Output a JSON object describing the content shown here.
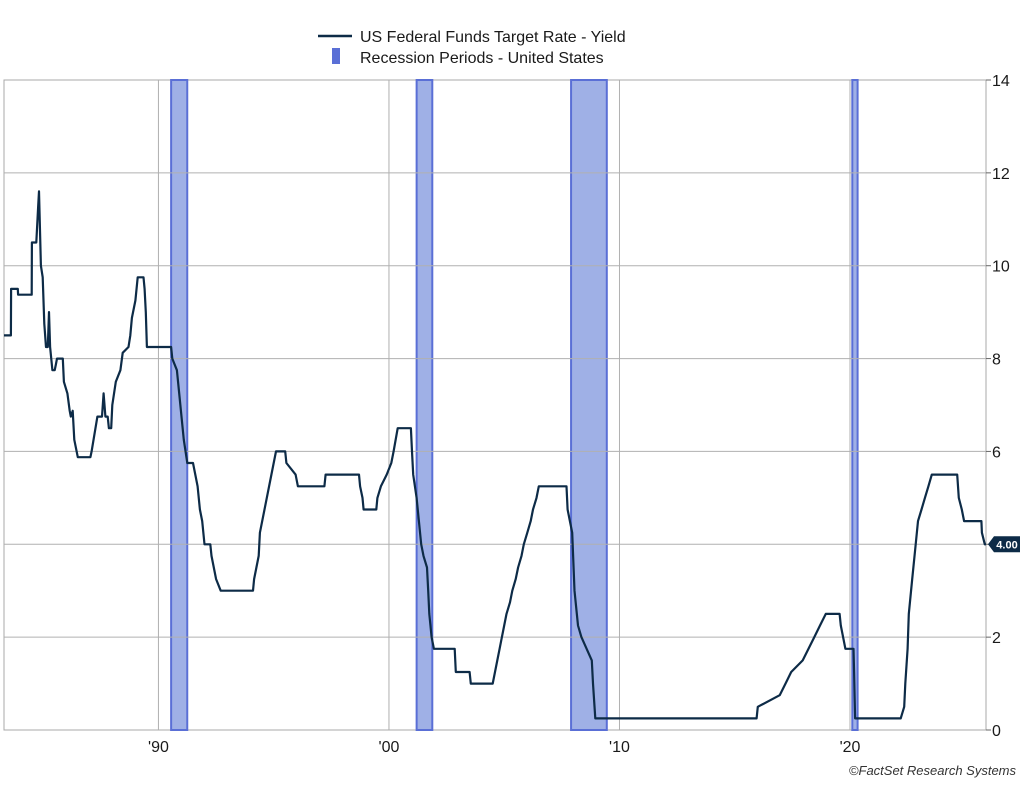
{
  "chart_data": {
    "type": "line",
    "title": "",
    "xlabel": "",
    "ylabel": "",
    "legend_placement": "top-center",
    "grid": true,
    "ylim": [
      0,
      14
    ],
    "xlim": [
      1983.3,
      2025.9
    ],
    "y_ticks": [
      "0",
      "2",
      "4",
      "6",
      "8",
      "10",
      "12",
      "14"
    ],
    "y_tick_values": [
      0,
      2,
      4,
      6,
      8,
      10,
      12,
      14
    ],
    "x_ticks": [
      "'90",
      "'00",
      "'10",
      "'20"
    ],
    "x_tick_values": [
      1990,
      2000,
      2010,
      2020
    ],
    "series": [
      {
        "name": "US Federal Funds Target Rate - Yield",
        "color": "#0d2b47",
        "points": [
          [
            1983.3,
            8.5
          ],
          [
            1983.6,
            8.5
          ],
          [
            1983.61,
            9.5
          ],
          [
            1983.9,
            9.5
          ],
          [
            1983.91,
            9.375
          ],
          [
            1984.5,
            9.375
          ],
          [
            1984.51,
            10.5
          ],
          [
            1984.7,
            10.5
          ],
          [
            1984.78,
            11.25
          ],
          [
            1984.82,
            11.6
          ],
          [
            1984.9,
            10.0
          ],
          [
            1984.98,
            9.75
          ],
          [
            1985.05,
            8.75
          ],
          [
            1985.12,
            8.25
          ],
          [
            1985.2,
            8.25
          ],
          [
            1985.25,
            9.0
          ],
          [
            1985.3,
            8.25
          ],
          [
            1985.4,
            7.75
          ],
          [
            1985.5,
            7.75
          ],
          [
            1985.55,
            7.875
          ],
          [
            1985.6,
            8.0
          ],
          [
            1985.85,
            8.0
          ],
          [
            1985.9,
            7.5
          ],
          [
            1986.05,
            7.25
          ],
          [
            1986.15,
            6.875
          ],
          [
            1986.2,
            6.75
          ],
          [
            1986.28,
            6.875
          ],
          [
            1986.35,
            6.25
          ],
          [
            1986.5,
            5.875
          ],
          [
            1987.05,
            5.875
          ],
          [
            1987.1,
            6.0
          ],
          [
            1987.35,
            6.75
          ],
          [
            1987.55,
            6.75
          ],
          [
            1987.62,
            7.25
          ],
          [
            1987.7,
            6.75
          ],
          [
            1987.8,
            6.75
          ],
          [
            1987.85,
            6.5
          ],
          [
            1987.95,
            6.5
          ],
          [
            1988.0,
            7.0
          ],
          [
            1988.15,
            7.5
          ],
          [
            1988.35,
            7.75
          ],
          [
            1988.45,
            8.125
          ],
          [
            1988.7,
            8.25
          ],
          [
            1988.78,
            8.5
          ],
          [
            1988.85,
            8.875
          ],
          [
            1989.0,
            9.25
          ],
          [
            1989.1,
            9.75
          ],
          [
            1989.35,
            9.75
          ],
          [
            1989.4,
            9.5
          ],
          [
            1989.45,
            9.0
          ],
          [
            1989.5,
            8.25
          ],
          [
            1990.55,
            8.25
          ],
          [
            1990.6,
            8.0
          ],
          [
            1990.8,
            7.75
          ],
          [
            1990.9,
            7.25
          ],
          [
            1991.0,
            6.75
          ],
          [
            1991.1,
            6.25
          ],
          [
            1991.25,
            5.75
          ],
          [
            1991.5,
            5.75
          ],
          [
            1991.6,
            5.5
          ],
          [
            1991.7,
            5.25
          ],
          [
            1991.8,
            4.75
          ],
          [
            1991.9,
            4.5
          ],
          [
            1992.0,
            4.0
          ],
          [
            1992.25,
            4.0
          ],
          [
            1992.3,
            3.75
          ],
          [
            1992.5,
            3.25
          ],
          [
            1992.7,
            3.0
          ],
          [
            1994.1,
            3.0
          ],
          [
            1994.15,
            3.25
          ],
          [
            1994.25,
            3.5
          ],
          [
            1994.35,
            3.75
          ],
          [
            1994.4,
            4.25
          ],
          [
            1994.6,
            4.75
          ],
          [
            1994.9,
            5.5
          ],
          [
            1995.1,
            6.0
          ],
          [
            1995.5,
            6.0
          ],
          [
            1995.55,
            5.75
          ],
          [
            1995.95,
            5.5
          ],
          [
            1996.05,
            5.25
          ],
          [
            1997.2,
            5.25
          ],
          [
            1997.25,
            5.5
          ],
          [
            1998.7,
            5.5
          ],
          [
            1998.75,
            5.25
          ],
          [
            1998.85,
            5.0
          ],
          [
            1998.9,
            4.75
          ],
          [
            1999.45,
            4.75
          ],
          [
            1999.5,
            5.0
          ],
          [
            1999.65,
            5.25
          ],
          [
            1999.9,
            5.5
          ],
          [
            2000.1,
            5.75
          ],
          [
            2000.2,
            6.0
          ],
          [
            2000.38,
            6.5
          ],
          [
            2000.95,
            6.5
          ],
          [
            2001.0,
            6.0
          ],
          [
            2001.05,
            5.5
          ],
          [
            2001.2,
            5.0
          ],
          [
            2001.3,
            4.5
          ],
          [
            2001.4,
            4.0
          ],
          [
            2001.5,
            3.75
          ],
          [
            2001.65,
            3.5
          ],
          [
            2001.7,
            3.0
          ],
          [
            2001.75,
            2.5
          ],
          [
            2001.85,
            2.0
          ],
          [
            2001.95,
            1.75
          ],
          [
            2002.85,
            1.75
          ],
          [
            2002.9,
            1.25
          ],
          [
            2003.5,
            1.25
          ],
          [
            2003.55,
            1.0
          ],
          [
            2004.5,
            1.0
          ],
          [
            2004.6,
            1.25
          ],
          [
            2004.7,
            1.5
          ],
          [
            2004.8,
            1.75
          ],
          [
            2004.9,
            2.0
          ],
          [
            2005.0,
            2.25
          ],
          [
            2005.1,
            2.5
          ],
          [
            2005.25,
            2.75
          ],
          [
            2005.35,
            3.0
          ],
          [
            2005.5,
            3.25
          ],
          [
            2005.6,
            3.5
          ],
          [
            2005.75,
            3.75
          ],
          [
            2005.85,
            4.0
          ],
          [
            2006.0,
            4.25
          ],
          [
            2006.15,
            4.5
          ],
          [
            2006.25,
            4.75
          ],
          [
            2006.4,
            5.0
          ],
          [
            2006.5,
            5.25
          ],
          [
            2007.7,
            5.25
          ],
          [
            2007.75,
            4.75
          ],
          [
            2007.85,
            4.5
          ],
          [
            2007.95,
            4.25
          ],
          [
            2008.05,
            3.0
          ],
          [
            2008.2,
            2.25
          ],
          [
            2008.35,
            2.0
          ],
          [
            2008.8,
            1.5
          ],
          [
            2008.85,
            1.0
          ],
          [
            2008.95,
            0.25
          ],
          [
            2015.95,
            0.25
          ],
          [
            2016.0,
            0.5
          ],
          [
            2016.95,
            0.75
          ],
          [
            2017.2,
            1.0
          ],
          [
            2017.45,
            1.25
          ],
          [
            2017.95,
            1.5
          ],
          [
            2018.2,
            1.75
          ],
          [
            2018.45,
            2.0
          ],
          [
            2018.7,
            2.25
          ],
          [
            2018.95,
            2.5
          ],
          [
            2019.55,
            2.5
          ],
          [
            2019.6,
            2.25
          ],
          [
            2019.7,
            2.0
          ],
          [
            2019.8,
            1.75
          ],
          [
            2020.15,
            1.75
          ],
          [
            2020.18,
            1.25
          ],
          [
            2020.22,
            0.25
          ],
          [
            2022.2,
            0.25
          ],
          [
            2022.35,
            0.5
          ],
          [
            2022.4,
            1.0
          ],
          [
            2022.5,
            1.75
          ],
          [
            2022.55,
            2.5
          ],
          [
            2022.7,
            3.25
          ],
          [
            2022.85,
            4.0
          ],
          [
            2022.95,
            4.5
          ],
          [
            2023.1,
            4.75
          ],
          [
            2023.25,
            5.0
          ],
          [
            2023.4,
            5.25
          ],
          [
            2023.55,
            5.5
          ],
          [
            2024.65,
            5.5
          ],
          [
            2024.72,
            5.0
          ],
          [
            2024.85,
            4.75
          ],
          [
            2024.95,
            4.5
          ],
          [
            2025.7,
            4.5
          ],
          [
            2025.72,
            4.25
          ],
          [
            2025.85,
            4.0
          ],
          [
            2025.9,
            4.0
          ]
        ]
      }
    ],
    "recessions": {
      "name": "Recession Periods - United States",
      "color": "#5a6fd6",
      "periods": [
        [
          1990.55,
          1991.25
        ],
        [
          2001.2,
          2001.88
        ],
        [
          2007.9,
          2009.45
        ],
        [
          2020.1,
          2020.33
        ]
      ]
    },
    "last_value_label": "4.00",
    "last_value": 4.0
  },
  "footer": {
    "credit": "©FactSet Research Systems"
  }
}
